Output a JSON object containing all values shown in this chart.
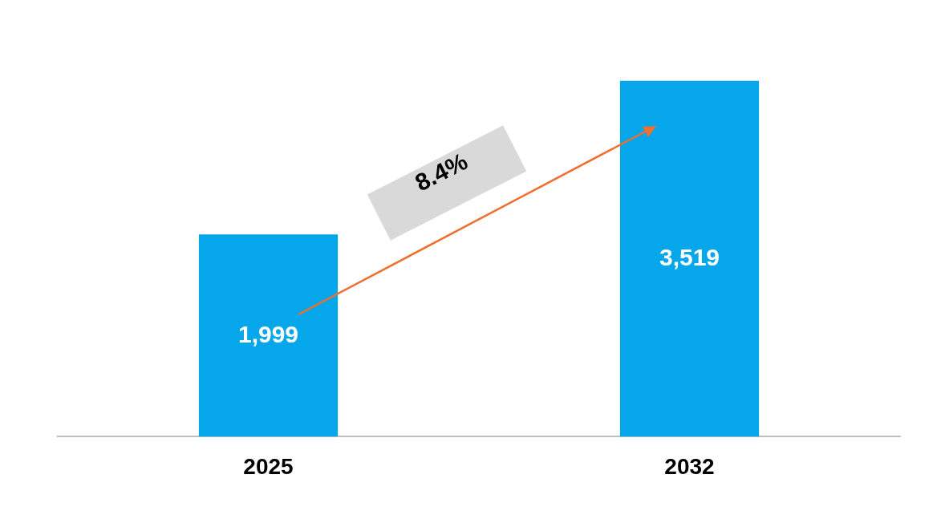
{
  "chart_data": {
    "type": "bar",
    "categories": [
      "2025",
      "2032"
    ],
    "values": [
      1999,
      3519
    ],
    "value_labels": [
      "1,999",
      "3,519"
    ],
    "color": "#06a7ea",
    "annotations": [
      "8.4%"
    ],
    "grid": false,
    "legend": false,
    "tick_labels": "x"
  }
}
